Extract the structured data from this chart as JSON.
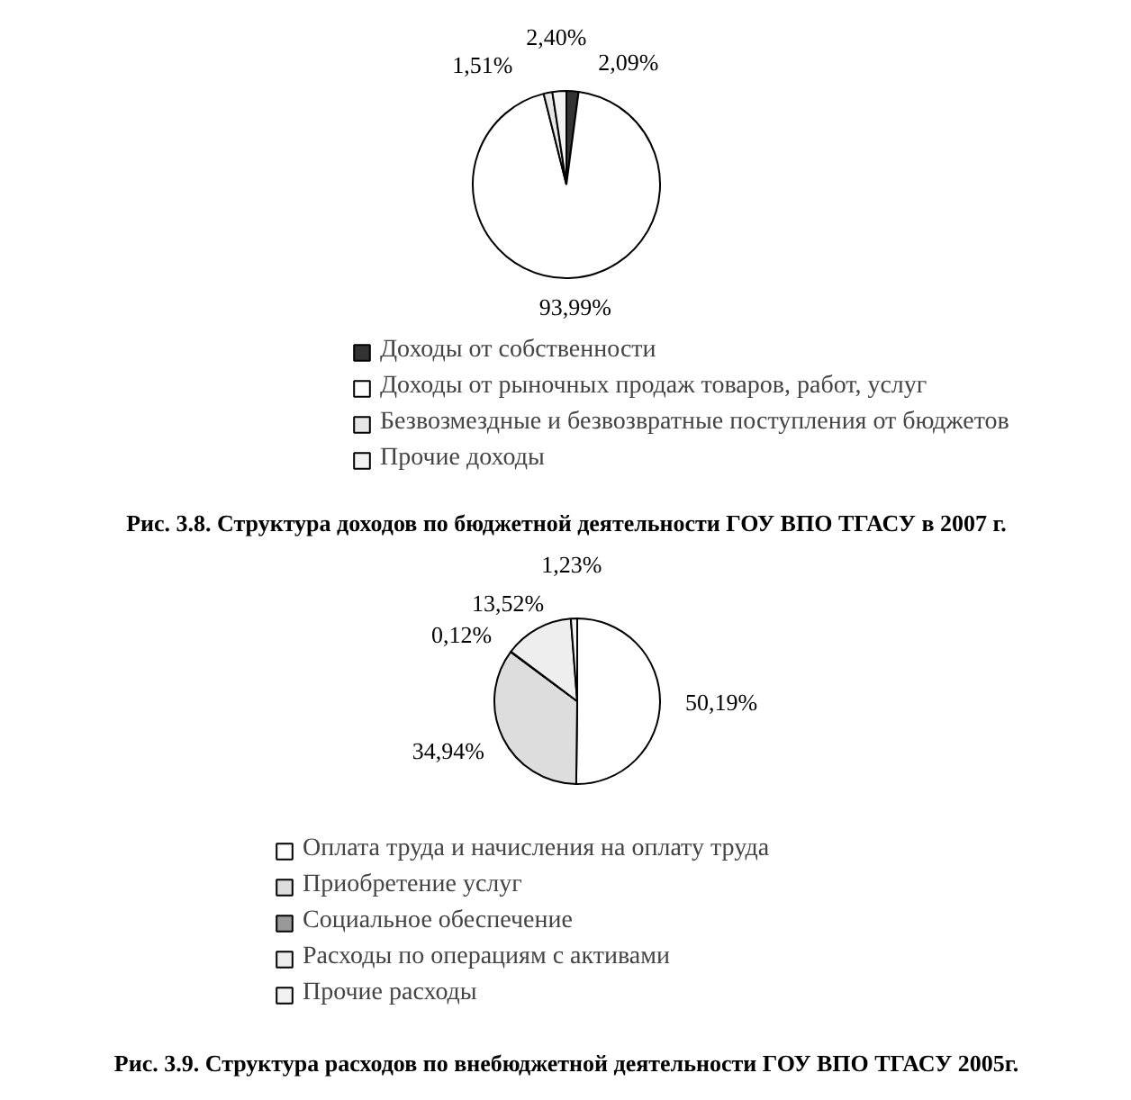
{
  "chart_data": [
    {
      "type": "pie",
      "title": "Рис. 3.8. Структура доходов по бюджетной деятельности ГОУ ВПО ТГАСУ в 2007 г.",
      "categories": [
        "Доходы от собственности",
        "Доходы от рыночных продаж товаров, работ, услуг",
        "Безвозмездные и безвозвратные поступления от бюджетов",
        "Прочие доходы"
      ],
      "values": [
        2.09,
        93.99,
        1.51,
        2.4
      ],
      "value_labels": [
        "2,09%",
        "93,99%",
        "1,51%",
        "2,40%"
      ],
      "colors": [
        "#333333",
        "#ffffff",
        "#e6e6e6",
        "#f2f2f2"
      ],
      "legend": "bottom"
    },
    {
      "type": "pie",
      "title": "Рис. 3.9. Структура расходов по внебюджетной деятельности ГОУ ВПО ТГАСУ 2005г.",
      "categories": [
        "Оплата труда и начисления на оплату труда",
        "Приобретение услуг",
        "Социальное обеспечение",
        "Расходы по операциям с активами",
        "Прочие расходы"
      ],
      "values": [
        50.19,
        34.94,
        0.12,
        13.52,
        1.23
      ],
      "value_labels": [
        "50,19%",
        "34,94%",
        "0,12%",
        "13,52%",
        "1,23%"
      ],
      "colors": [
        "#ffffff",
        "#dddddd",
        "#999999",
        "#eeeeee",
        "#f2f2f2"
      ],
      "legend": "bottom"
    }
  ]
}
